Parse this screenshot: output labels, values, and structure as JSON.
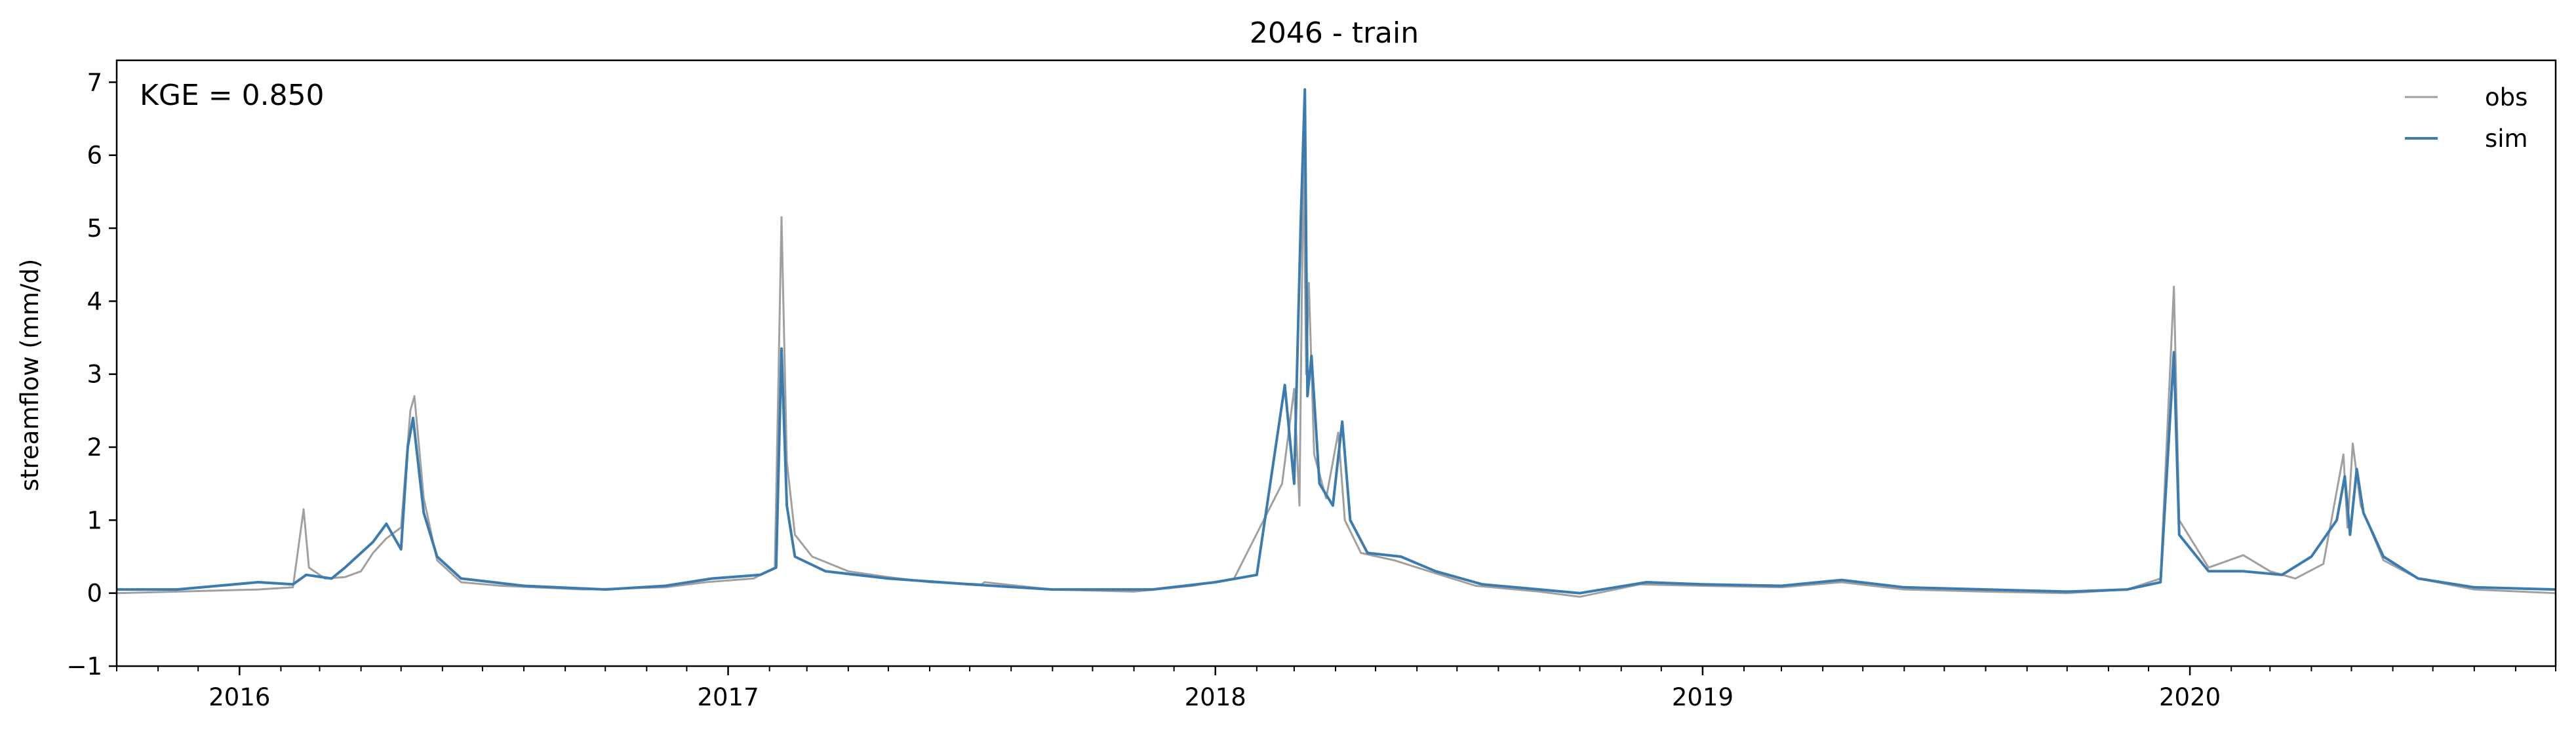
{
  "chart_data": {
    "type": "line",
    "title": "2046 - train",
    "xlabel": "",
    "ylabel": "streamflow (mm/d)",
    "annotation": "KGE = 0.850",
    "xlim": [
      "2015-10-01",
      "2020-10-01"
    ],
    "ylim": [
      -1,
      7.3
    ],
    "yticks": [
      -1,
      0,
      1,
      2,
      3,
      4,
      5,
      6,
      7
    ],
    "xticks": [
      {
        "label": "2016",
        "date": "2016-01-01"
      },
      {
        "label": "2017",
        "date": "2017-01-01"
      },
      {
        "label": "2018",
        "date": "2018-01-01"
      },
      {
        "label": "2019",
        "date": "2019-01-01"
      },
      {
        "label": "2020",
        "date": "2020-01-01"
      }
    ],
    "legend_position": "top-right",
    "grid": false,
    "series": [
      {
        "name": "obs",
        "color": "#a0a0a0",
        "points": [
          [
            "2015-10-01",
            0.0
          ],
          [
            "2015-11-15",
            0.02
          ],
          [
            "2016-01-15",
            0.05
          ],
          [
            "2016-02-10",
            0.08
          ],
          [
            "2016-02-18",
            1.15
          ],
          [
            "2016-02-22",
            0.35
          ],
          [
            "2016-03-05",
            0.2
          ],
          [
            "2016-03-20",
            0.22
          ],
          [
            "2016-04-01",
            0.3
          ],
          [
            "2016-04-10",
            0.55
          ],
          [
            "2016-04-20",
            0.75
          ],
          [
            "2016-05-01",
            0.9
          ],
          [
            "2016-05-08",
            2.5
          ],
          [
            "2016-05-11",
            2.7
          ],
          [
            "2016-05-18",
            1.3
          ],
          [
            "2016-05-28",
            0.45
          ],
          [
            "2016-06-15",
            0.15
          ],
          [
            "2016-07-15",
            0.1
          ],
          [
            "2016-09-15",
            0.05
          ],
          [
            "2016-11-15",
            0.08
          ],
          [
            "2016-12-15",
            0.15
          ],
          [
            "2017-01-20",
            0.2
          ],
          [
            "2017-02-05",
            0.35
          ],
          [
            "2017-02-10",
            5.15
          ],
          [
            "2017-02-14",
            1.8
          ],
          [
            "2017-02-20",
            0.8
          ],
          [
            "2017-03-05",
            0.5
          ],
          [
            "2017-04-01",
            0.3
          ],
          [
            "2017-05-01",
            0.22
          ],
          [
            "2017-06-01",
            0.15
          ],
          [
            "2017-07-10",
            0.12
          ],
          [
            "2017-07-12",
            0.15
          ],
          [
            "2017-09-01",
            0.05
          ],
          [
            "2017-11-01",
            0.02
          ],
          [
            "2017-12-15",
            0.1
          ],
          [
            "2018-01-15",
            0.2
          ],
          [
            "2018-02-20",
            1.5
          ],
          [
            "2018-03-01",
            2.8
          ],
          [
            "2018-03-05",
            1.2
          ],
          [
            "2018-03-08",
            6.05
          ],
          [
            "2018-03-10",
            3.0
          ],
          [
            "2018-03-12",
            4.25
          ],
          [
            "2018-03-16",
            1.9
          ],
          [
            "2018-03-25",
            1.3
          ],
          [
            "2018-04-03",
            2.2
          ],
          [
            "2018-04-08",
            1.0
          ],
          [
            "2018-04-20",
            0.55
          ],
          [
            "2018-05-15",
            0.45
          ],
          [
            "2018-06-10",
            0.3
          ],
          [
            "2018-07-15",
            0.1
          ],
          [
            "2018-09-01",
            0.02
          ],
          [
            "2018-10-01",
            -0.05
          ],
          [
            "2018-11-15",
            0.12
          ],
          [
            "2019-01-01",
            0.1
          ],
          [
            "2019-03-01",
            0.08
          ],
          [
            "2019-04-15",
            0.15
          ],
          [
            "2019-06-01",
            0.05
          ],
          [
            "2019-08-01",
            0.02
          ],
          [
            "2019-10-01",
            0.0
          ],
          [
            "2019-11-15",
            0.05
          ],
          [
            "2019-12-10",
            0.2
          ],
          [
            "2019-12-20",
            4.2
          ],
          [
            "2019-12-24",
            1.0
          ],
          [
            "2020-01-15",
            0.35
          ],
          [
            "2020-02-10",
            0.52
          ],
          [
            "2020-03-01",
            0.3
          ],
          [
            "2020-03-20",
            0.2
          ],
          [
            "2020-04-10",
            0.4
          ],
          [
            "2020-04-25",
            1.9
          ],
          [
            "2020-04-28",
            0.9
          ],
          [
            "2020-05-02",
            2.05
          ],
          [
            "2020-05-08",
            1.2
          ],
          [
            "2020-05-25",
            0.45
          ],
          [
            "2020-06-20",
            0.2
          ],
          [
            "2020-08-01",
            0.05
          ],
          [
            "2020-10-01",
            0.0
          ]
        ]
      },
      {
        "name": "sim",
        "color": "#3b7bb0",
        "points": [
          [
            "2015-10-01",
            0.05
          ],
          [
            "2015-11-15",
            0.05
          ],
          [
            "2016-01-15",
            0.15
          ],
          [
            "2016-02-10",
            0.12
          ],
          [
            "2016-02-20",
            0.25
          ],
          [
            "2016-03-10",
            0.2
          ],
          [
            "2016-03-20",
            0.35
          ],
          [
            "2016-04-01",
            0.55
          ],
          [
            "2016-04-10",
            0.7
          ],
          [
            "2016-04-20",
            0.95
          ],
          [
            "2016-05-01",
            0.6
          ],
          [
            "2016-05-06",
            2.0
          ],
          [
            "2016-05-10",
            2.4
          ],
          [
            "2016-05-18",
            1.1
          ],
          [
            "2016-05-28",
            0.5
          ],
          [
            "2016-06-15",
            0.2
          ],
          [
            "2016-08-01",
            0.1
          ],
          [
            "2016-10-01",
            0.05
          ],
          [
            "2016-11-15",
            0.1
          ],
          [
            "2016-12-20",
            0.2
          ],
          [
            "2017-01-25",
            0.25
          ],
          [
            "2017-02-06",
            0.35
          ],
          [
            "2017-02-10",
            3.35
          ],
          [
            "2017-02-14",
            1.2
          ],
          [
            "2017-02-20",
            0.5
          ],
          [
            "2017-03-15",
            0.3
          ],
          [
            "2017-05-01",
            0.2
          ],
          [
            "2017-07-01",
            0.12
          ],
          [
            "2017-09-01",
            0.05
          ],
          [
            "2017-11-15",
            0.05
          ],
          [
            "2018-01-01",
            0.15
          ],
          [
            "2018-02-01",
            0.25
          ],
          [
            "2018-02-22",
            2.85
          ],
          [
            "2018-03-01",
            1.5
          ],
          [
            "2018-03-06",
            5.1
          ],
          [
            "2018-03-09",
            6.9
          ],
          [
            "2018-03-11",
            2.7
          ],
          [
            "2018-03-14",
            3.25
          ],
          [
            "2018-03-20",
            1.5
          ],
          [
            "2018-03-30",
            1.2
          ],
          [
            "2018-04-06",
            2.35
          ],
          [
            "2018-04-12",
            1.0
          ],
          [
            "2018-04-25",
            0.55
          ],
          [
            "2018-05-20",
            0.5
          ],
          [
            "2018-06-15",
            0.3
          ],
          [
            "2018-07-20",
            0.12
          ],
          [
            "2018-09-01",
            0.05
          ],
          [
            "2018-10-01",
            0.0
          ],
          [
            "2018-11-20",
            0.15
          ],
          [
            "2019-01-01",
            0.12
          ],
          [
            "2019-03-01",
            0.1
          ],
          [
            "2019-04-15",
            0.18
          ],
          [
            "2019-06-01",
            0.08
          ],
          [
            "2019-08-01",
            0.05
          ],
          [
            "2019-10-01",
            0.02
          ],
          [
            "2019-11-15",
            0.05
          ],
          [
            "2019-12-10",
            0.15
          ],
          [
            "2019-12-20",
            3.3
          ],
          [
            "2019-12-24",
            0.8
          ],
          [
            "2020-01-15",
            0.3
          ],
          [
            "2020-02-10",
            0.3
          ],
          [
            "2020-03-10",
            0.25
          ],
          [
            "2020-04-01",
            0.5
          ],
          [
            "2020-04-20",
            1.0
          ],
          [
            "2020-04-26",
            1.6
          ],
          [
            "2020-04-30",
            0.8
          ],
          [
            "2020-05-05",
            1.7
          ],
          [
            "2020-05-10",
            1.1
          ],
          [
            "2020-05-25",
            0.5
          ],
          [
            "2020-06-20",
            0.2
          ],
          [
            "2020-08-01",
            0.08
          ],
          [
            "2020-10-01",
            0.05
          ]
        ]
      }
    ]
  }
}
